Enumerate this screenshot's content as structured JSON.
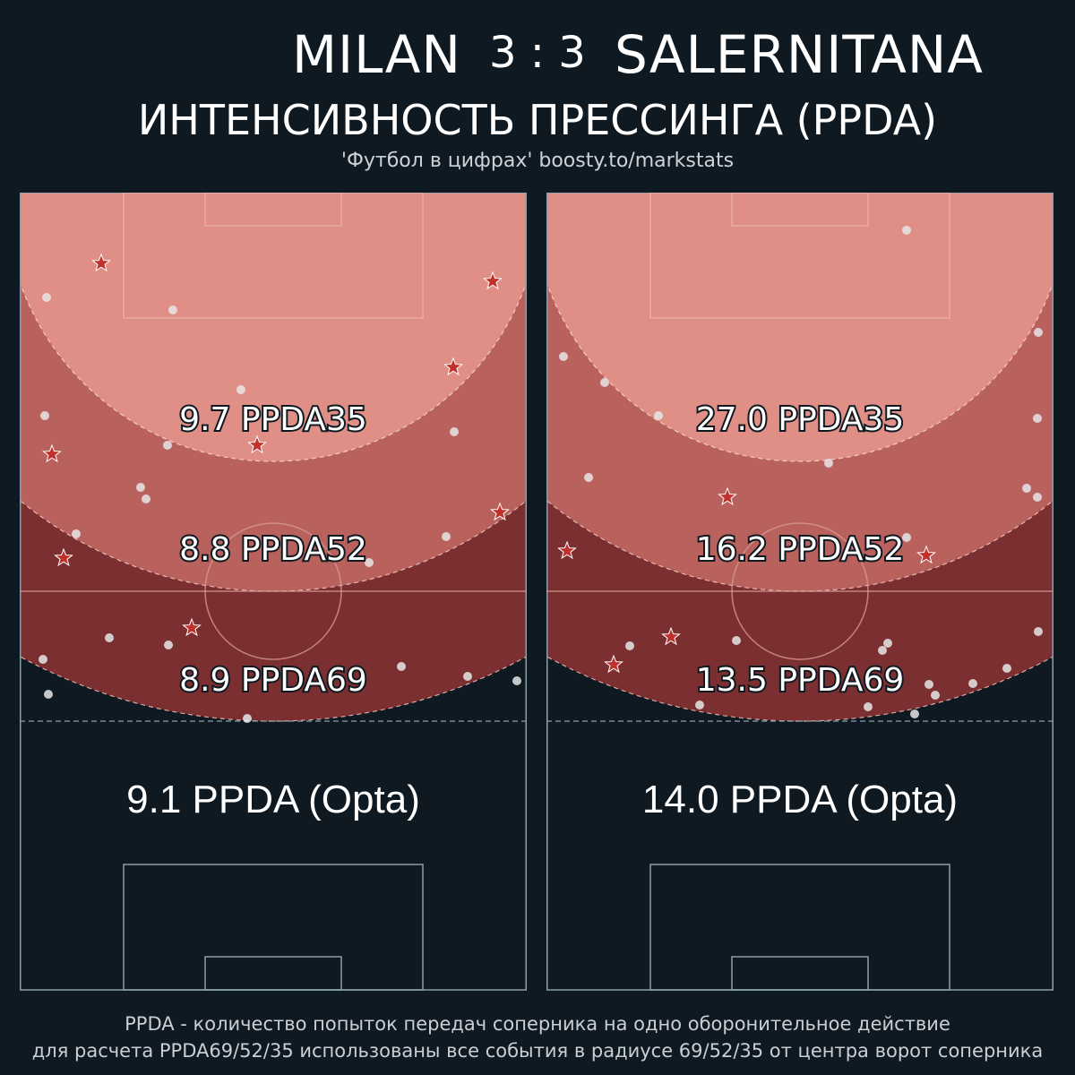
{
  "header": {
    "home_team": "MILAN",
    "score": "3 : 3",
    "away_team": "SALERNITANA",
    "subtitle": "ИНТЕНСИВНОСТЬ ПРЕССИНГА (PPDA)",
    "credit": "'Футбол в цифрах' boosty.to/markstats"
  },
  "colors": {
    "background": "#0e1921",
    "zone_35": "#e08f87",
    "zone_52": "#b8615d",
    "zone_69": "#7b2f31",
    "star": "#c0312c",
    "dot": "#e6e6e6",
    "pitch_line": "#8aa0ab"
  },
  "panels": [
    {
      "team": "MILAN",
      "ppda35": "9.7 PPDA35",
      "ppda52": "8.8 PPDA52",
      "ppda69": "8.9 PPDA69",
      "opta": "9.1 PPDA (Opta)"
    },
    {
      "team": "SALERNITANA",
      "ppda35": "27.0 PPDA35",
      "ppda52": "16.2 PPDA52",
      "ppda69": "13.5 PPDA69",
      "opta": "14.0 PPDA (Opta)"
    }
  ],
  "footer": {
    "line1": "PPDA - количество попыток передач соперника на одно оборонительное действие",
    "line2": "для расчета PPDA69/52/35 использованы все события в радиусе 69/52/35 от центра ворот соперника"
  },
  "legend_icons": {
    "star": "star-icon",
    "dot": "dot-icon"
  }
}
